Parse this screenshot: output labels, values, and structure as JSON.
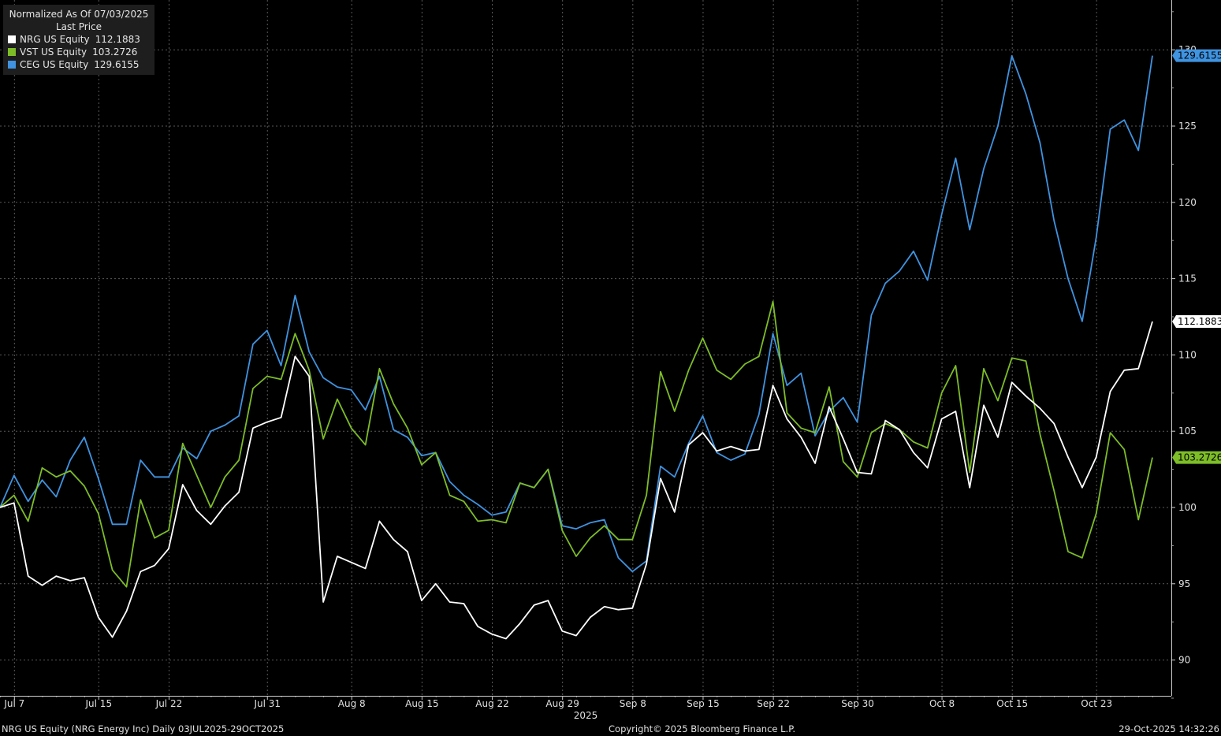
{
  "chart_data": {
    "type": "line",
    "title": "Normalized As Of 07/03/2025",
    "subtitle": "Last Price",
    "ylim": [
      87.5,
      133
    ],
    "yticks": [
      90,
      95,
      100,
      105,
      110,
      115,
      120,
      125,
      130
    ],
    "grid": true,
    "legend_position": "top-left",
    "year_label": "2025",
    "x": [
      "2025-07-03",
      "2025-07-07",
      "2025-07-08",
      "2025-07-09",
      "2025-07-10",
      "2025-07-11",
      "2025-07-14",
      "2025-07-15",
      "2025-07-16",
      "2025-07-17",
      "2025-07-18",
      "2025-07-21",
      "2025-07-22",
      "2025-07-23",
      "2025-07-24",
      "2025-07-25",
      "2025-07-28",
      "2025-07-29",
      "2025-07-30",
      "2025-07-31",
      "2025-08-01",
      "2025-08-04",
      "2025-08-05",
      "2025-08-06",
      "2025-08-07",
      "2025-08-08",
      "2025-08-11",
      "2025-08-12",
      "2025-08-13",
      "2025-08-14",
      "2025-08-15",
      "2025-08-18",
      "2025-08-19",
      "2025-08-20",
      "2025-08-21",
      "2025-08-22",
      "2025-08-25",
      "2025-08-26",
      "2025-08-27",
      "2025-08-28",
      "2025-08-29",
      "2025-09-02",
      "2025-09-03",
      "2025-09-04",
      "2025-09-05",
      "2025-09-08",
      "2025-09-09",
      "2025-09-10",
      "2025-09-11",
      "2025-09-12",
      "2025-09-15",
      "2025-09-16",
      "2025-09-17",
      "2025-09-18",
      "2025-09-19",
      "2025-09-22",
      "2025-09-23",
      "2025-09-24",
      "2025-09-25",
      "2025-09-26",
      "2025-09-29",
      "2025-09-30",
      "2025-10-01",
      "2025-10-02",
      "2025-10-03",
      "2025-10-06",
      "2025-10-07",
      "2025-10-08",
      "2025-10-09",
      "2025-10-10",
      "2025-10-13",
      "2025-10-14",
      "2025-10-15",
      "2025-10-16",
      "2025-10-17",
      "2025-10-20",
      "2025-10-21",
      "2025-10-22",
      "2025-10-23",
      "2025-10-24",
      "2025-10-27",
      "2025-10-28",
      "2025-10-29"
    ],
    "x_ticks": [
      {
        "label": "Jul 7",
        "index": 1
      },
      {
        "label": "Jul 15",
        "index": 7
      },
      {
        "label": "Jul 22",
        "index": 12
      },
      {
        "label": "Jul 31",
        "index": 19
      },
      {
        "label": "Aug 8",
        "index": 25
      },
      {
        "label": "Aug 15",
        "index": 30
      },
      {
        "label": "Aug 22",
        "index": 35
      },
      {
        "label": "Aug 29",
        "index": 40
      },
      {
        "label": "Sep 8",
        "index": 45
      },
      {
        "label": "Sep 15",
        "index": 50
      },
      {
        "label": "Sep 22",
        "index": 55
      },
      {
        "label": "Sep 30",
        "index": 61
      },
      {
        "label": "Oct 8",
        "index": 67
      },
      {
        "label": "Oct 15",
        "index": 72
      },
      {
        "label": "Oct 23",
        "index": 78
      }
    ],
    "series": [
      {
        "name": "CEG US Equity",
        "last": "129.6155",
        "color": "#3f93e0",
        "values": [
          100,
          102.1,
          100.4,
          101.8,
          100.7,
          103.1,
          104.6,
          101.9,
          98.9,
          98.9,
          103.1,
          102.0,
          102.0,
          103.9,
          103.2,
          105.0,
          105.4,
          106.0,
          110.7,
          111.6,
          109.3,
          113.9,
          110.2,
          108.5,
          107.9,
          107.7,
          106.4,
          108.6,
          105.1,
          104.6,
          103.4,
          103.6,
          101.7,
          100.8,
          100.2,
          99.5,
          99.7,
          101.6,
          101.3,
          102.5,
          98.8,
          98.6,
          99.0,
          99.2,
          96.7,
          95.8,
          96.5,
          102.7,
          102.0,
          104.2,
          106.0,
          103.6,
          103.1,
          103.5,
          106.1,
          111.4,
          108.0,
          108.8,
          104.7,
          106.3,
          107.2,
          105.6,
          112.6,
          114.7,
          115.5,
          116.8,
          114.9,
          119.2,
          122.9,
          118.2,
          122.2,
          125.0,
          129.6,
          127.1,
          123.9,
          118.8,
          115.0,
          112.2,
          117.7,
          124.8,
          125.4,
          123.4,
          129.6155
        ]
      },
      {
        "name": "VST US Equity",
        "last": "103.2726",
        "color": "#7dbd27",
        "values": [
          100,
          100.8,
          99.1,
          102.6,
          102.0,
          102.4,
          101.4,
          99.6,
          95.9,
          94.8,
          100.5,
          98.0,
          98.5,
          104.2,
          102.1,
          100.0,
          102.0,
          103.1,
          107.8,
          108.6,
          108.4,
          111.4,
          109.0,
          104.5,
          107.1,
          105.2,
          104.1,
          109.1,
          106.8,
          105.2,
          102.8,
          103.6,
          100.8,
          100.4,
          99.1,
          99.2,
          99.0,
          101.6,
          101.3,
          102.5,
          98.5,
          96.8,
          98.0,
          98.8,
          97.9,
          97.9,
          100.8,
          108.9,
          106.3,
          109.0,
          111.1,
          109.0,
          108.4,
          109.4,
          109.9,
          113.5,
          106.2,
          105.2,
          104.9,
          107.9,
          103.0,
          102.0,
          104.9,
          105.5,
          105.1,
          104.3,
          103.9,
          107.5,
          109.3,
          102.3,
          109.1,
          107.0,
          109.8,
          109.6,
          104.8,
          101.1,
          97.1,
          96.7,
          99.6,
          104.9,
          103.8,
          99.2,
          103.2726
        ]
      },
      {
        "name": "NRG US Equity",
        "last": "112.1883",
        "color": "#ffffff",
        "values": [
          100,
          100.3,
          95.5,
          94.9,
          95.5,
          95.2,
          95.4,
          92.8,
          91.5,
          93.2,
          95.8,
          96.2,
          97.3,
          101.5,
          99.8,
          98.9,
          100.1,
          101.0,
          105.2,
          105.6,
          105.9,
          109.9,
          108.6,
          93.8,
          96.8,
          96.4,
          96.0,
          99.1,
          97.9,
          97.1,
          93.9,
          95.0,
          93.8,
          93.7,
          92.2,
          91.7,
          91.4,
          92.4,
          93.6,
          93.9,
          91.9,
          91.6,
          92.8,
          93.5,
          93.3,
          93.4,
          96.3,
          101.9,
          99.7,
          104.1,
          104.9,
          103.7,
          104.0,
          103.7,
          103.8,
          108.0,
          105.8,
          104.6,
          102.9,
          106.6,
          104.5,
          102.3,
          102.2,
          105.7,
          105.1,
          103.6,
          102.6,
          105.8,
          106.3,
          101.3,
          106.7,
          104.6,
          108.2,
          107.3,
          106.5,
          105.5,
          103.3,
          101.3,
          103.3,
          107.6,
          109.0,
          109.1,
          112.1883
        ]
      }
    ]
  },
  "footer": {
    "left": "NRG US Equity (NRG Energy Inc) Daily 03JUL2025-29OCT2025",
    "center": "Copyright© 2025 Bloomberg Finance L.P.",
    "right": "29-Oct-2025 14:32:26"
  }
}
